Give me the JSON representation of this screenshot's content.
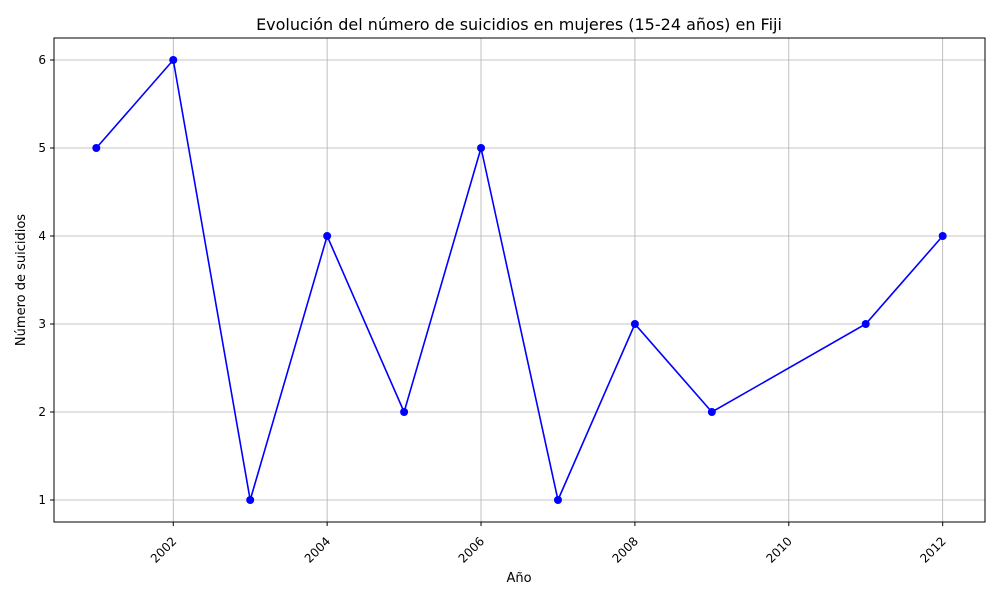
{
  "chart_data": {
    "type": "line",
    "title": "Evolución del número de suicidios en mujeres (15-24 años) en Fiji",
    "xlabel": "Año",
    "ylabel": "Número de suicidios",
    "x": [
      2001,
      2002,
      2003,
      2004,
      2005,
      2006,
      2007,
      2008,
      2009,
      2011,
      2012
    ],
    "series": [
      {
        "values": [
          5,
          6,
          1,
          4,
          2,
          5,
          1,
          3,
          2,
          3,
          4
        ],
        "color": "#0000ff",
        "marker": "circle"
      }
    ],
    "xticks": [
      2002,
      2004,
      2006,
      2008,
      2010,
      2012
    ],
    "yticks": [
      1,
      2,
      3,
      4,
      5,
      6
    ],
    "xlim": [
      2000.45,
      2012.55
    ],
    "ylim": [
      0.75,
      6.25
    ],
    "grid": true,
    "xtick_rotation": 45
  }
}
